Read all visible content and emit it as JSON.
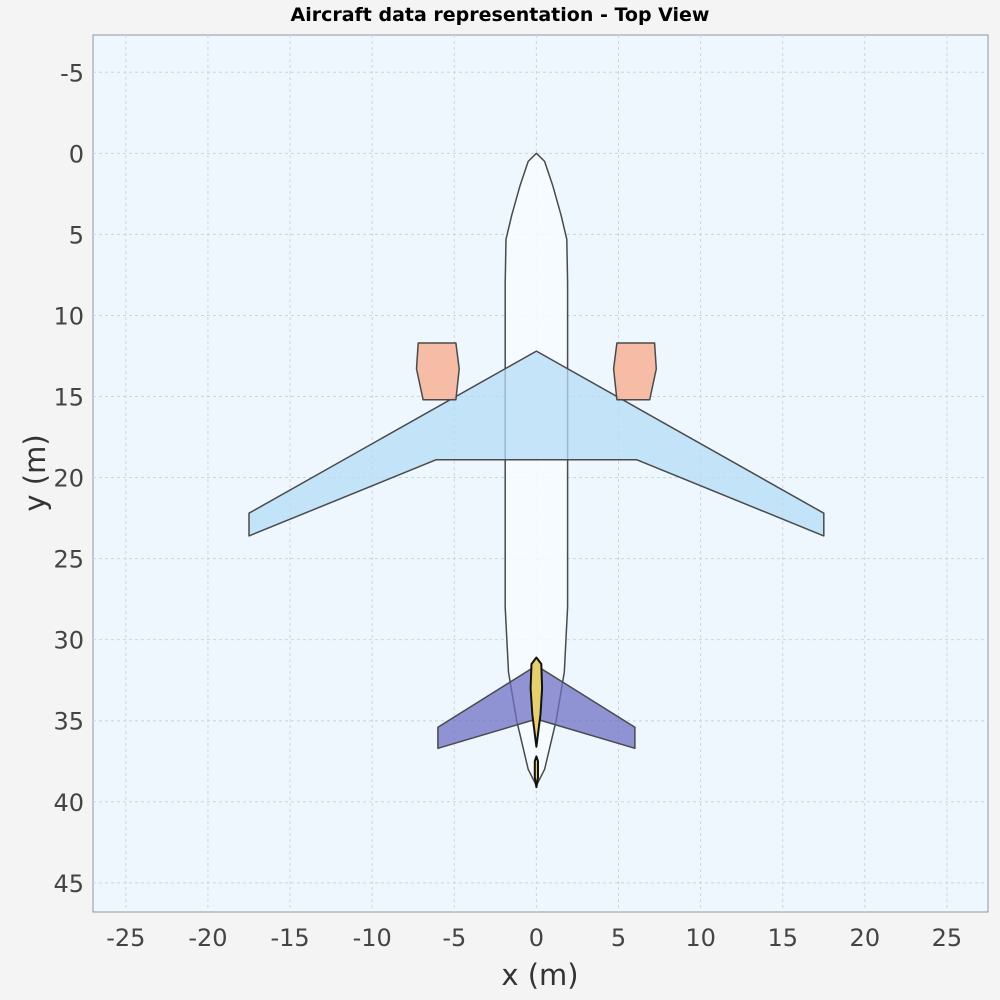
{
  "chart_data": {
    "type": "scatter",
    "title": "Aircraft data representation - Top View",
    "xlabel": "x (m)",
    "ylabel": "y (m)",
    "xlim": [
      -27,
      27.5
    ],
    "ylim": [
      -7.3,
      46.8
    ],
    "y_inverted": true,
    "grid": true,
    "xticks": [
      -25,
      -20,
      -15,
      -10,
      -5,
      0,
      5,
      10,
      15,
      20,
      25
    ],
    "yticks": [
      -5,
      0,
      5,
      10,
      15,
      20,
      25,
      30,
      35,
      40,
      45
    ],
    "colors": {
      "plot_background": "#eef6fe",
      "fuselage": "#f7fbff",
      "wing": "#b4dcf7",
      "nacelle": "#f6b8a0",
      "horizontal_tail": "#6f70c4",
      "vertical_tail": "#e5cf6e",
      "outline": "#4a4a4a"
    },
    "components": [
      {
        "name": "fuselage",
        "points": [
          [
            0,
            0
          ],
          [
            0.5,
            0.5
          ],
          [
            1.0,
            2.0
          ],
          [
            1.5,
            3.8
          ],
          [
            1.85,
            5.3
          ],
          [
            1.9,
            8
          ],
          [
            1.9,
            28
          ],
          [
            1.7,
            32
          ],
          [
            1.2,
            35
          ],
          [
            0.5,
            38
          ],
          [
            0,
            39
          ],
          [
            -0.5,
            38
          ],
          [
            -1.2,
            35
          ],
          [
            -1.7,
            32
          ],
          [
            -1.9,
            28
          ],
          [
            -1.9,
            8
          ],
          [
            -1.85,
            5.3
          ],
          [
            -1.5,
            3.8
          ],
          [
            -1.0,
            2.0
          ],
          [
            -0.5,
            0.5
          ]
        ]
      },
      {
        "name": "wing",
        "points": [
          [
            0,
            12.2
          ],
          [
            17.5,
            22.2
          ],
          [
            17.5,
            23.6
          ],
          [
            6.1,
            18.9
          ],
          [
            -6.1,
            18.9
          ],
          [
            -17.5,
            23.6
          ],
          [
            -17.5,
            22.2
          ]
        ]
      },
      {
        "name": "nacelle-left",
        "points": [
          [
            -7.2,
            11.7
          ],
          [
            -4.9,
            11.7
          ],
          [
            -4.7,
            13.3
          ],
          [
            -4.9,
            15.2
          ],
          [
            -6.9,
            15.2
          ],
          [
            -7.3,
            13.3
          ]
        ]
      },
      {
        "name": "nacelle-right",
        "points": [
          [
            4.9,
            11.7
          ],
          [
            7.2,
            11.7
          ],
          [
            7.3,
            13.3
          ],
          [
            6.9,
            15.2
          ],
          [
            4.9,
            15.2
          ],
          [
            4.7,
            13.3
          ]
        ]
      },
      {
        "name": "horizontal-tail",
        "points": [
          [
            0,
            31.6
          ],
          [
            6,
            35.4
          ],
          [
            6,
            36.7
          ],
          [
            0,
            34.9
          ],
          [
            -6,
            36.7
          ],
          [
            -6,
            35.4
          ]
        ]
      },
      {
        "name": "vertical-tail",
        "points": [
          [
            0,
            31.1
          ],
          [
            0.3,
            31.5
          ],
          [
            0.35,
            33
          ],
          [
            0.25,
            34.6
          ],
          [
            0,
            36.6
          ],
          [
            -0.25,
            34.6
          ],
          [
            -0.35,
            33
          ],
          [
            -0.3,
            31.5
          ]
        ]
      },
      {
        "name": "tail-tip",
        "points": [
          [
            0,
            37.2
          ],
          [
            0.1,
            37.5
          ],
          [
            0.1,
            38.5
          ],
          [
            0,
            39.1
          ],
          [
            -0.1,
            38.5
          ],
          [
            -0.1,
            37.5
          ]
        ]
      }
    ]
  }
}
